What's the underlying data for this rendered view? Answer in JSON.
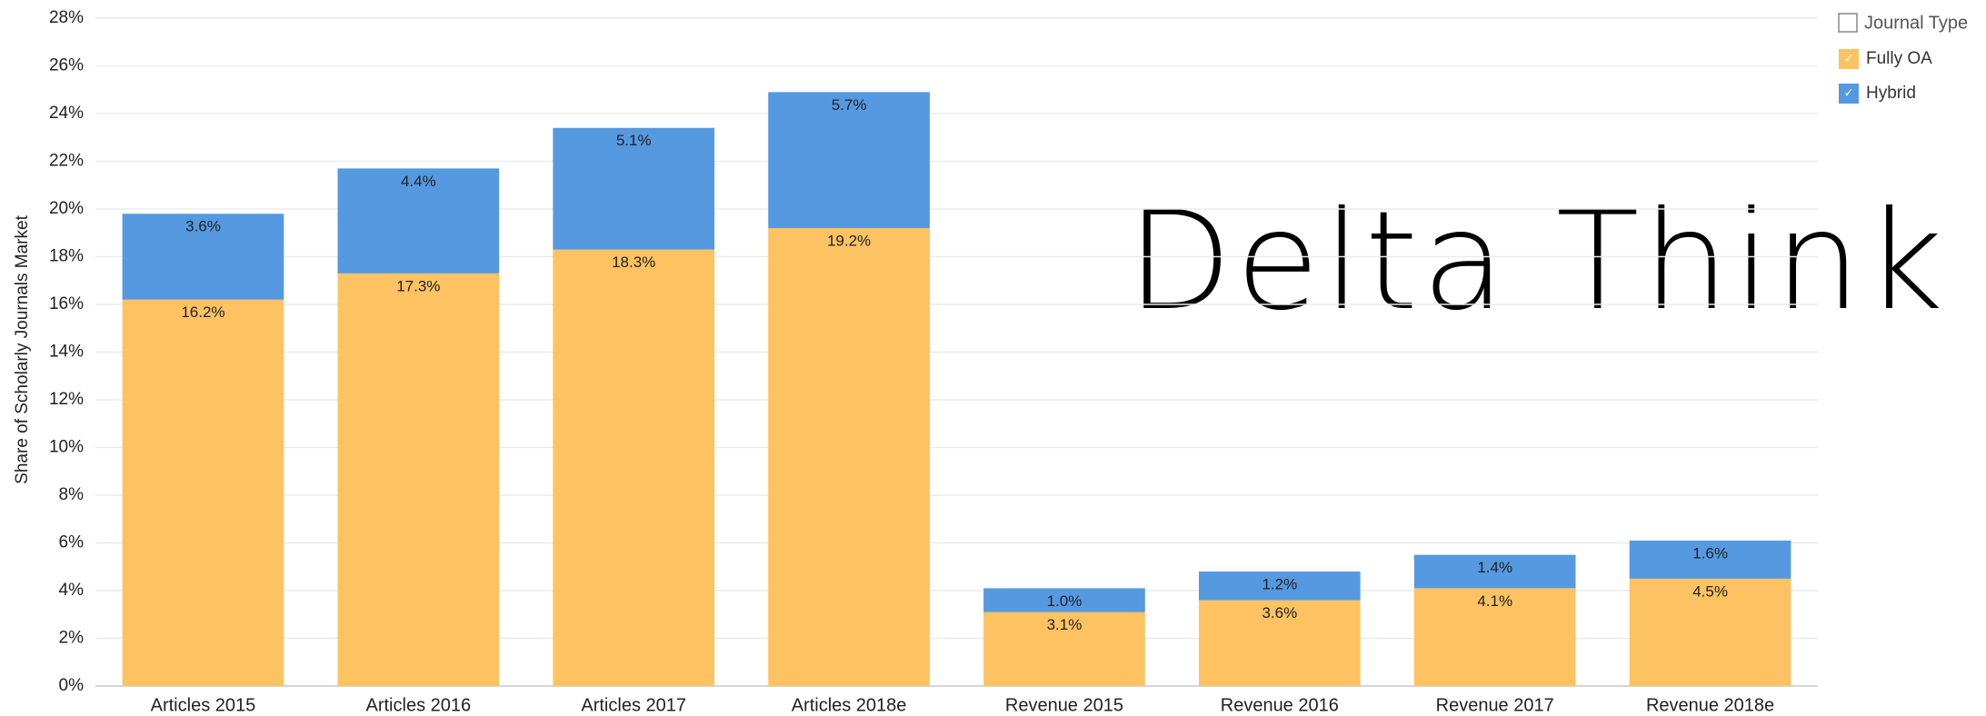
{
  "chart_data": {
    "type": "stacked_bar",
    "y_axis_label": "Share of Scholarly Journals Market",
    "annotation": "Delta Think",
    "legend_title": "Journal Type",
    "legend_position": "top-right",
    "grid": true,
    "categories": [
      "Articles 2015",
      "Articles 2016",
      "Articles 2017",
      "Articles 2018e",
      "Revenue 2015",
      "Revenue 2016",
      "Revenue 2017",
      "Revenue 2018e"
    ],
    "series": [
      {
        "name": "Fully OA",
        "color": "#fdc262",
        "values": [
          16.2,
          17.3,
          18.3,
          19.2,
          3.1,
          3.6,
          4.1,
          4.5
        ],
        "value_labels": [
          "16.2%",
          "17.3%",
          "18.3%",
          "19.2%",
          "3.1%",
          "3.6%",
          "4.1%",
          "4.5%"
        ]
      },
      {
        "name": "Hybrid",
        "color": "#5599e0",
        "values": [
          3.6,
          4.4,
          5.1,
          5.7,
          1.0,
          1.2,
          1.4,
          1.6
        ],
        "value_labels": [
          "3.6%",
          "4.4%",
          "5.1%",
          "5.7%",
          "1.0%",
          "1.2%",
          "1.4%",
          "1.6%"
        ]
      }
    ],
    "ylim": [
      0,
      28
    ],
    "yticks": [
      {
        "value": 0,
        "label": "0%"
      },
      {
        "value": 2,
        "label": "2%"
      },
      {
        "value": 4,
        "label": "4%"
      },
      {
        "value": 6,
        "label": "6%"
      },
      {
        "value": 8,
        "label": "8%"
      },
      {
        "value": 10,
        "label": "10%"
      },
      {
        "value": 12,
        "label": "12%"
      },
      {
        "value": 14,
        "label": "14%"
      },
      {
        "value": 16,
        "label": "16%"
      },
      {
        "value": 18,
        "label": "18%"
      },
      {
        "value": 20,
        "label": "20%"
      },
      {
        "value": 22,
        "label": "22%"
      },
      {
        "value": 24,
        "label": "24%"
      },
      {
        "value": 26,
        "label": "26%"
      },
      {
        "value": 28,
        "label": "28%"
      }
    ]
  }
}
